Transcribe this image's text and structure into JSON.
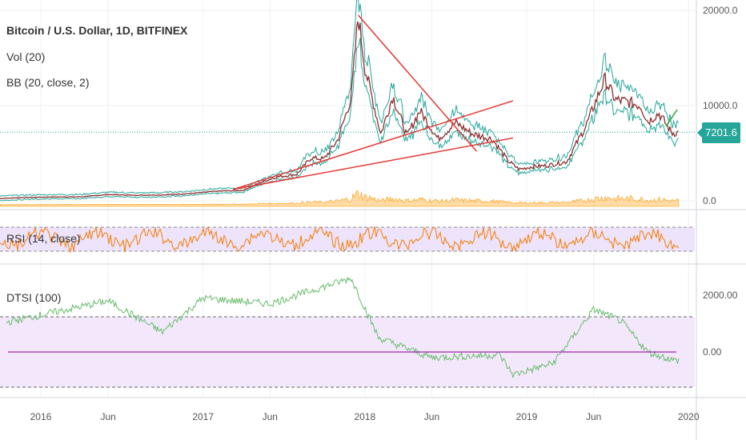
{
  "legend": {
    "symbol": "Bitcoin / U.S. Dollar, 1D, BITFINEX",
    "volume": "Vol (20)",
    "bollinger": "BB (20, close, 2)",
    "rsi": "RSI (14, close)",
    "dtsi": "DTSI (100)"
  },
  "last_price_label": "7201.6",
  "colors": {
    "price": "#8b2e2e",
    "band": "#26a69a",
    "trendline": "#e53935",
    "volume": "#ff9800",
    "rsi_line": "#f57c00",
    "rsi_fill": "#ede3fb",
    "dtsi_line": "#66bb6a",
    "dtsi_zero": "#ab47bc",
    "dtsi_fill": "#f3e8fb",
    "last_price": "#26a69a",
    "green_arrow": "#4caf50"
  },
  "chart_data": [
    {
      "type": "line",
      "name": "price",
      "x": [
        "2015-10-01",
        "2015-12-01",
        "2016-02-01",
        "2016-04-01",
        "2016-06-01",
        "2016-08-01",
        "2016-10-01",
        "2016-12-01",
        "2017-02-01",
        "2017-04-01",
        "2017-05-15",
        "2017-06-15",
        "2017-08-01",
        "2017-09-01",
        "2017-10-01",
        "2017-11-01",
        "2017-12-01",
        "2017-12-17",
        "2018-01-01",
        "2018-02-06",
        "2018-03-05",
        "2018-04-06",
        "2018-05-05",
        "2018-06-15",
        "2018-07-25",
        "2018-09-01",
        "2018-10-15",
        "2018-11-20",
        "2018-12-15",
        "2019-01-15",
        "2019-02-15",
        "2019-04-01",
        "2019-05-15",
        "2019-06-26",
        "2019-07-20",
        "2019-08-15",
        "2019-09-15",
        "2019-10-01",
        "2019-10-26",
        "2019-11-25",
        "2019-12-10"
      ],
      "y": [
        240,
        360,
        400,
        420,
        650,
        580,
        620,
        760,
        1000,
        1100,
        2000,
        2500,
        2800,
        4500,
        4400,
        6400,
        10800,
        19500,
        14000,
        7000,
        11000,
        6800,
        9500,
        6500,
        8200,
        7000,
        6500,
        4200,
        3300,
        3600,
        3700,
        4100,
        7900,
        12800,
        10600,
        10400,
        10000,
        8300,
        9200,
        7100,
        7200
      ]
    },
    {
      "type": "bar",
      "name": "volume",
      "x": [
        "2015",
        "2016",
        "2017-06",
        "2017-12",
        "2018-06",
        "2018-11",
        "2019-06",
        "2019-12"
      ],
      "values": [
        "low",
        "low",
        "moderate",
        "high",
        "moderate",
        "moderate",
        "moderate",
        "low"
      ]
    },
    {
      "type": "line",
      "name": "rsi",
      "band": [
        30,
        70
      ],
      "y_range": [
        0,
        100
      ]
    },
    {
      "type": "line",
      "name": "dtsi",
      "x": [
        "2015-10",
        "2016-06",
        "2016-10",
        "2017-01",
        "2017-06",
        "2017-12",
        "2018-02",
        "2018-06",
        "2018-11",
        "2018-12",
        "2019-03",
        "2019-06",
        "2019-08",
        "2019-10",
        "2019-12"
      ],
      "y": [
        1000,
        1800,
        700,
        1900,
        1700,
        2600,
        500,
        -200,
        -100,
        -800,
        -400,
        1500,
        1100,
        0,
        -300
      ],
      "zero_line": 0,
      "band": [
        -1300,
        1300
      ],
      "y_ticks": [
        "2000.00",
        "0.00"
      ]
    }
  ],
  "axes": {
    "price_ticks": [
      "20000.0",
      "10000.0",
      "0.0"
    ],
    "x_ticks": [
      "2016",
      "Jun",
      "2017",
      "Jun",
      "2018",
      "Jun",
      "2019",
      "Jun",
      "2020"
    ],
    "dtsi_ticks": [
      "2000.00",
      "0.00"
    ]
  }
}
